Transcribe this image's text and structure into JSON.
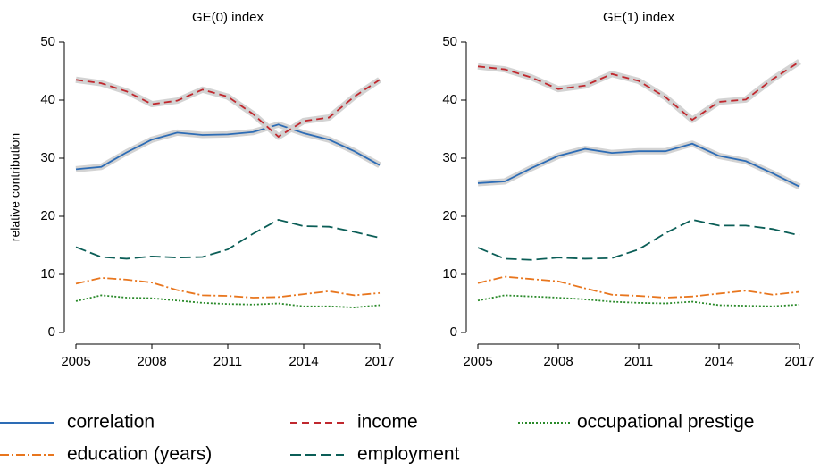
{
  "chart_data": [
    {
      "type": "line",
      "title": "GE(0) index",
      "y_label": "relative contribution",
      "x": [
        2005,
        2006,
        2007,
        2008,
        2009,
        2010,
        2011,
        2012,
        2013,
        2014,
        2015,
        2016,
        2017
      ],
      "xlim": [
        2005,
        2017
      ],
      "xticks": [
        2005,
        2008,
        2011,
        2014,
        2017
      ],
      "ylim": [
        0,
        50
      ],
      "yticks": [
        0,
        10,
        20,
        30,
        40,
        50
      ],
      "series": [
        {
          "name": "correlation",
          "color": "#2d6cb5",
          "dash": "none",
          "band": true,
          "values": [
            28.1,
            28.5,
            31,
            33.2,
            34.4,
            34,
            34.1,
            34.5,
            35.8,
            34.3,
            33.2,
            31.2,
            28.8
          ]
        },
        {
          "name": "income",
          "color": "#c0282e",
          "dash": "8,5",
          "band": true,
          "values": [
            43.5,
            42.9,
            41.5,
            39.3,
            39.9,
            41.8,
            40.6,
            37.6,
            33.7,
            36.4,
            37,
            40.6,
            43.5
          ]
        },
        {
          "name": "occupational prestige",
          "color": "#2a8a2a",
          "dash": "2,2",
          "band": false,
          "values": [
            5.4,
            6.4,
            6,
            5.9,
            5.5,
            5.1,
            4.9,
            4.8,
            5,
            4.5,
            4.5,
            4.3,
            4.7
          ]
        },
        {
          "name": "education (years)",
          "color": "#e8761e",
          "dash": "10,3,2,3",
          "band": false,
          "values": [
            8.4,
            9.4,
            9.1,
            8.6,
            7.3,
            6.4,
            6.3,
            6,
            6.1,
            6.6,
            7.1,
            6.4,
            6.8
          ]
        },
        {
          "name": "employment",
          "color": "#0b5e57",
          "dash": "12,5",
          "band": false,
          "values": [
            14.7,
            13,
            12.7,
            13.1,
            12.9,
            13,
            14.3,
            17,
            19.4,
            18.3,
            18.2,
            17.3,
            16.3
          ]
        }
      ]
    },
    {
      "type": "line",
      "title": "GE(1) index",
      "x": [
        2005,
        2006,
        2007,
        2008,
        2009,
        2010,
        2011,
        2012,
        2013,
        2014,
        2015,
        2016,
        2017
      ],
      "xlim": [
        2005,
        2017
      ],
      "xticks": [
        2005,
        2008,
        2011,
        2014,
        2017
      ],
      "ylim": [
        0,
        50
      ],
      "yticks": [
        0,
        10,
        20,
        30,
        40,
        50
      ],
      "series": [
        {
          "color": "#2d6cb5",
          "dash": "none",
          "band": true,
          "values": [
            25.7,
            26,
            28.3,
            30.4,
            31.6,
            30.9,
            31.2,
            31.2,
            32.5,
            30.4,
            29.5,
            27.4,
            25.1
          ]
        },
        {
          "color": "#c0282e",
          "dash": "8,5",
          "band": true,
          "values": [
            45.8,
            45.3,
            43.9,
            41.9,
            42.5,
            44.5,
            43.3,
            40.5,
            36.6,
            39.7,
            40.1,
            43.6,
            46.6
          ]
        },
        {
          "color": "#2a8a2a",
          "dash": "2,2",
          "band": false,
          "values": [
            5.5,
            6.4,
            6.2,
            6,
            5.7,
            5.3,
            5.1,
            5,
            5.3,
            4.7,
            4.6,
            4.5,
            4.8
          ]
        },
        {
          "color": "#e8761e",
          "dash": "10,3,2,3",
          "band": false,
          "values": [
            8.5,
            9.6,
            9.2,
            8.8,
            7.6,
            6.5,
            6.3,
            6,
            6.2,
            6.7,
            7.2,
            6.5,
            7
          ]
        },
        {
          "color": "#0b5e57",
          "dash": "12,5",
          "band": false,
          "values": [
            14.6,
            12.7,
            12.5,
            12.9,
            12.7,
            12.8,
            14.3,
            17.1,
            19.4,
            18.4,
            18.4,
            17.8,
            16.7
          ]
        }
      ]
    }
  ]
}
